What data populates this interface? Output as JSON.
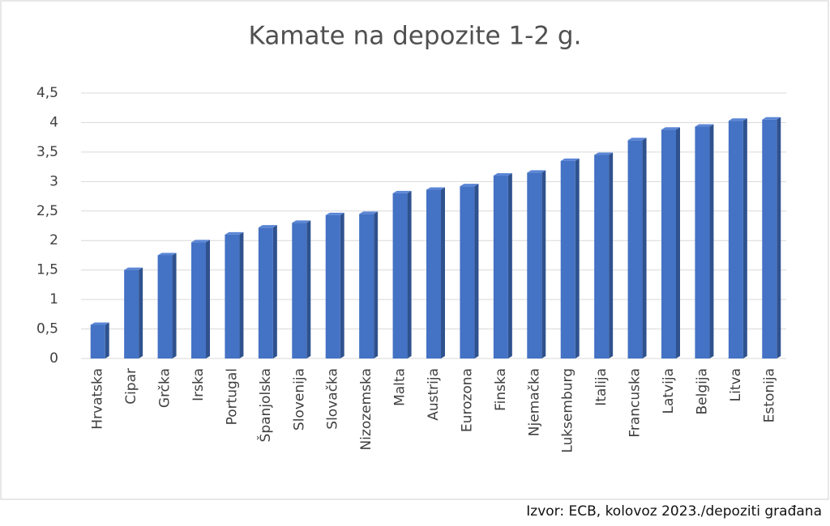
{
  "chart_data": {
    "type": "bar",
    "title": "Kamate na depozite 1-2 g.",
    "source": "Izvor: ECB, kolovoz 2023./depoziti građana",
    "categories": [
      "Hrvatska",
      "Cipar",
      "Grčka",
      "Irska",
      "Portugal",
      "Španjolska",
      "Slovenija",
      "Slovačka",
      "Nizozemska",
      "Malta",
      "Austrija",
      "Eurozona",
      "Finska",
      "Njemačka",
      "Luksemburg",
      "Italija",
      "Francuska",
      "Latvija",
      "Belgija",
      "Litva",
      "Estonija"
    ],
    "values": [
      0.57,
      1.5,
      1.75,
      1.97,
      2.1,
      2.22,
      2.3,
      2.43,
      2.45,
      2.8,
      2.86,
      2.92,
      3.1,
      3.15,
      3.35,
      3.45,
      3.7,
      3.88,
      3.93,
      4.03,
      4.05
    ],
    "color": "#4472c4",
    "ylim": [
      0,
      4.5
    ],
    "yticks": [
      0,
      {
        "value": 0.5,
        "label": "0,5"
      },
      1,
      {
        "value": 1.5,
        "label": "1,5"
      },
      2,
      {
        "value": 2.5,
        "label": "2,5"
      },
      3,
      {
        "value": 3.5,
        "label": "3,5"
      },
      4,
      {
        "value": 4.5,
        "label": "4,5"
      }
    ],
    "grid": true
  }
}
